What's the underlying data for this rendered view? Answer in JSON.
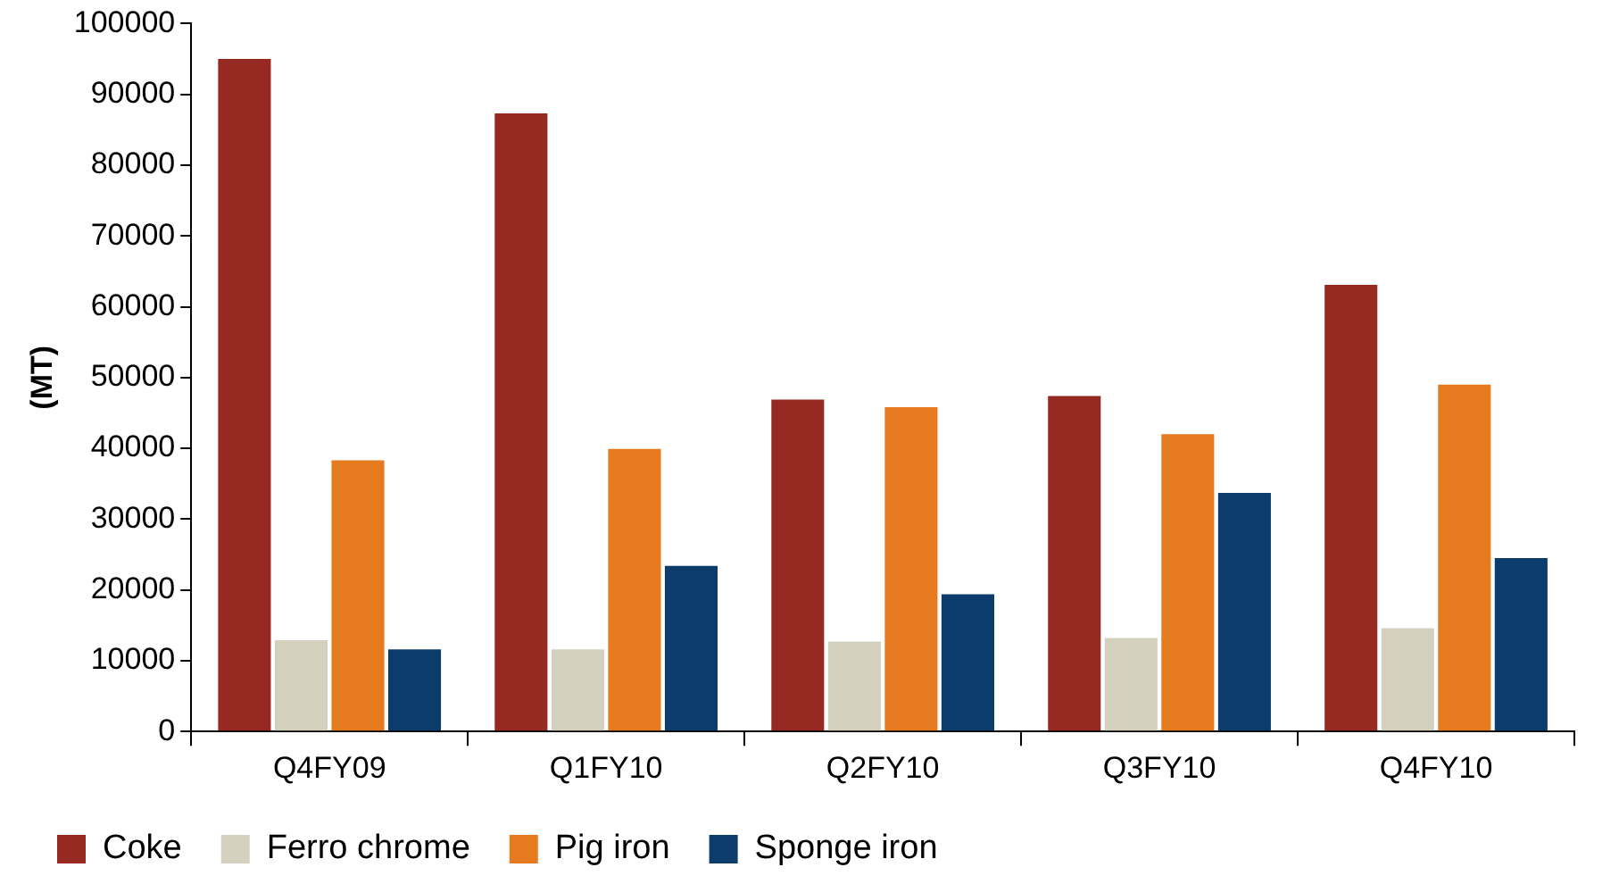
{
  "chart_data": {
    "type": "bar",
    "ylabel": "(MT)",
    "categories": [
      "Q4FY09",
      "Q1FY10",
      "Q2FY10",
      "Q3FY10",
      "Q4FY10"
    ],
    "series": [
      {
        "name": "Coke",
        "color": "#962a22",
        "values": [
          95000,
          87300,
          46900,
          47400,
          63100
        ]
      },
      {
        "name": "Ferro chrome",
        "color": "#d3d0bd",
        "values": [
          12900,
          11600,
          12700,
          13200,
          14600
        ]
      },
      {
        "name": "Pig iron",
        "color": "#e67a1e",
        "values": [
          38300,
          39900,
          45800,
          42000,
          49000
        ]
      },
      {
        "name": "Sponge iron",
        "color": "#0b3c6b",
        "values": [
          11600,
          23400,
          19400,
          33700,
          24500
        ]
      }
    ],
    "ylim": [
      0,
      100000
    ],
    "yticks": [
      0,
      10000,
      20000,
      30000,
      40000,
      50000,
      60000,
      70000,
      80000,
      90000,
      100000
    ],
    "grid": false,
    "legend": "bottom"
  }
}
